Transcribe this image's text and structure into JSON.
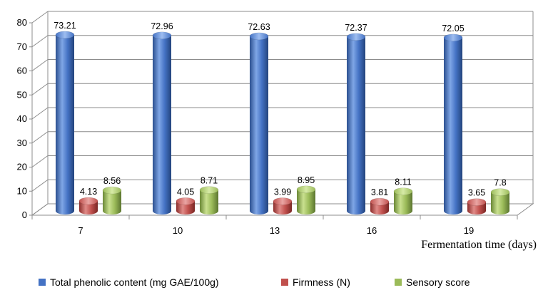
{
  "chart_data": {
    "type": "bar",
    "categories": [
      "7",
      "10",
      "13",
      "16",
      "19"
    ],
    "series": [
      {
        "name": "Total phenolic content (mg GAE/100g)",
        "values": [
          73.21,
          72.96,
          72.63,
          72.37,
          72.05
        ],
        "labels": [
          "73.21",
          "72.96",
          "72.63",
          "72.37",
          "72.05"
        ],
        "color": "#4472C4"
      },
      {
        "name": "Firmness (N)",
        "values": [
          4.13,
          4.05,
          3.99,
          3.81,
          3.65
        ],
        "labels": [
          "4.13",
          "4.05",
          "3.99",
          "3.81",
          "3.65"
        ],
        "color": "#C0504D"
      },
      {
        "name": "Sensory score",
        "values": [
          8.56,
          8.71,
          8.95,
          8.11,
          7.8
        ],
        "labels": [
          "8.56",
          "8.71",
          "8.95",
          "8.11",
          "7.8"
        ],
        "color": "#9BBB59"
      }
    ],
    "y_ticks": [
      "0",
      "10",
      "20",
      "30",
      "40",
      "50",
      "60",
      "70",
      "80"
    ],
    "ylim": [
      0,
      80
    ],
    "xlabel": "Fermentation time (days)",
    "ylabel": "",
    "title": "",
    "grid": true,
    "legend_position": "bottom",
    "bar_shape": "3d-cylinder"
  }
}
